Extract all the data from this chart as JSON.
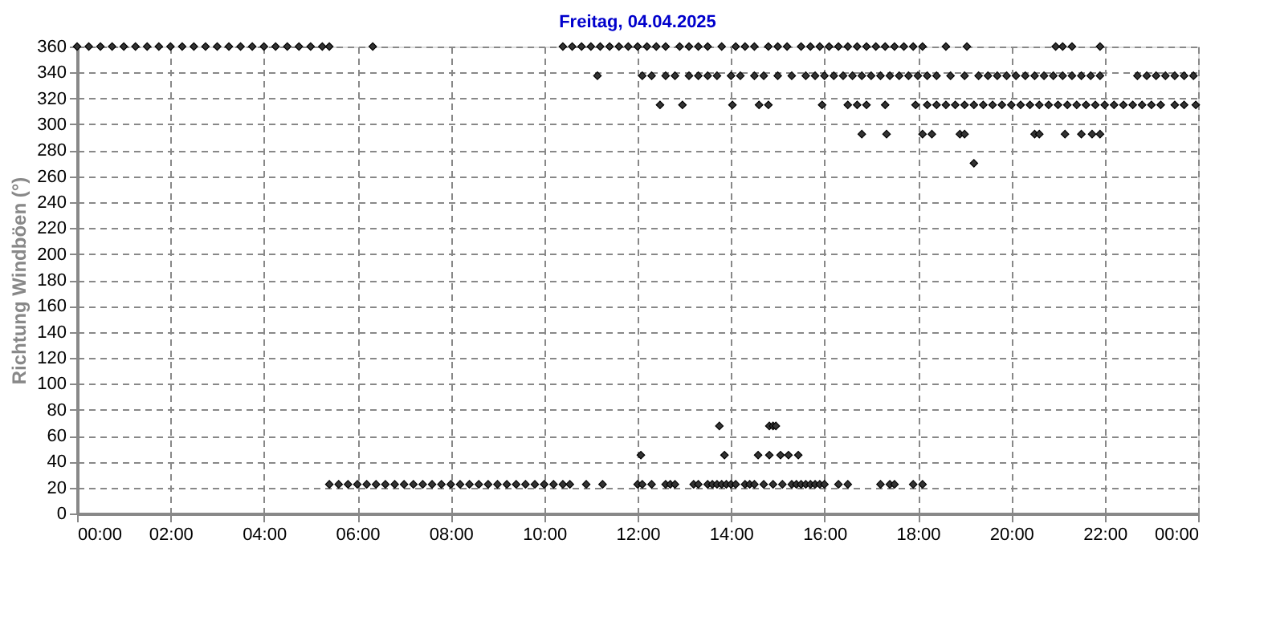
{
  "chart_data": {
    "type": "scatter",
    "title": "Freitag, 04.04.2025",
    "ylabel": "Richtung Windböen  (°)",
    "marker": "diamond",
    "grid": true,
    "legend": false,
    "xlim": [
      0,
      24
    ],
    "xticks": [
      {
        "value": 0,
        "label": "00:00"
      },
      {
        "value": 2,
        "label": "02:00"
      },
      {
        "value": 4,
        "label": "04:00"
      },
      {
        "value": 6,
        "label": "06:00"
      },
      {
        "value": 8,
        "label": "08:00"
      },
      {
        "value": 10,
        "label": "10:00"
      },
      {
        "value": 12,
        "label": "12:00"
      },
      {
        "value": 14,
        "label": "14:00"
      },
      {
        "value": 16,
        "label": "16:00"
      },
      {
        "value": 18,
        "label": "18:00"
      },
      {
        "value": 20,
        "label": "20:00"
      },
      {
        "value": 22,
        "label": "22:00"
      },
      {
        "value": 24,
        "label": "00:00"
      }
    ],
    "ylim": [
      0,
      360
    ],
    "yticks": [
      0,
      20,
      40,
      60,
      80,
      100,
      120,
      140,
      160,
      180,
      200,
      220,
      240,
      260,
      280,
      300,
      320,
      340,
      360
    ],
    "series": [
      {
        "color": "#333333",
        "x": [
          0,
          0.25,
          0.5,
          0.75,
          1,
          1.25,
          1.5,
          1.75,
          2,
          2.25,
          2.5,
          2.75,
          3,
          3.25,
          3.5,
          3.75,
          4,
          4.25,
          4.5,
          4.75,
          5,
          5.25,
          5.4,
          6.33,
          10.4,
          10.6,
          10.8,
          11,
          11.2,
          11.4,
          11.6,
          11.8,
          12,
          12.2,
          12.4,
          12.6,
          12.9,
          13.1,
          13.3,
          13.5,
          13.8,
          14.1,
          14.3,
          14.5,
          14.8,
          15,
          15.2,
          15.5,
          15.7,
          15.9,
          16.1,
          16.3,
          16.5,
          16.7,
          16.9,
          17.1,
          17.3,
          17.5,
          17.7,
          17.9,
          18.1,
          18.6,
          19.05,
          20.95,
          21.1,
          21.3,
          21.9
        ],
        "values": [
          360,
          360,
          360,
          360,
          360,
          360,
          360,
          360,
          360,
          360,
          360,
          360,
          360,
          360,
          360,
          360,
          360,
          360,
          360,
          360,
          360,
          360,
          360,
          360,
          360,
          360,
          360,
          360,
          360,
          360,
          360,
          360,
          360,
          360,
          360,
          360,
          360,
          360,
          360,
          360,
          360,
          360,
          360,
          360,
          360,
          360,
          360,
          360,
          360,
          360,
          360,
          360,
          360,
          360,
          360,
          360,
          360,
          360,
          360,
          360,
          360,
          360,
          360,
          360,
          360,
          360,
          360
        ]
      },
      {
        "color": "#333333",
        "x": [
          11.14,
          12.1,
          12.3,
          12.6,
          12.8,
          13.1,
          13.3,
          13.5,
          13.7,
          14,
          14.2,
          14.5,
          14.7,
          15,
          15.3,
          15.6,
          15.8,
          16,
          16.2,
          16.4,
          16.6,
          16.8,
          17,
          17.2,
          17.4,
          17.6,
          17.8,
          18,
          18.2,
          18.4,
          18.7,
          19,
          19.3,
          19.5,
          19.7,
          19.9,
          20.1,
          20.3,
          20.5,
          20.7,
          20.9,
          21.1,
          21.3,
          21.5,
          21.7,
          21.9,
          22.7,
          22.9,
          23.1,
          23.3,
          23.5,
          23.7,
          23.9
        ],
        "values": [
          337.5,
          337.5,
          337.5,
          337.5,
          337.5,
          337.5,
          337.5,
          337.5,
          337.5,
          337.5,
          337.5,
          337.5,
          337.5,
          337.5,
          337.5,
          337.5,
          337.5,
          337.5,
          337.5,
          337.5,
          337.5,
          337.5,
          337.5,
          337.5,
          337.5,
          337.5,
          337.5,
          337.5,
          337.5,
          337.5,
          337.5,
          337.5,
          337.5,
          337.5,
          337.5,
          337.5,
          337.5,
          337.5,
          337.5,
          337.5,
          337.5,
          337.5,
          337.5,
          337.5,
          337.5,
          337.5,
          337.5,
          337.5,
          337.5,
          337.5,
          337.5,
          337.5,
          337.5
        ]
      },
      {
        "color": "#333333",
        "x": [
          12.48,
          12.96,
          14.03,
          14.6,
          14.8,
          15.95,
          16.5,
          16.7,
          16.9,
          17.3,
          17.95,
          18.2,
          18.4,
          18.6,
          18.8,
          19,
          19.2,
          19.4,
          19.6,
          19.8,
          20,
          20.2,
          20.4,
          20.6,
          20.8,
          21,
          21.2,
          21.4,
          21.6,
          21.8,
          22,
          22.2,
          22.4,
          22.6,
          22.8,
          23,
          23.2,
          23.5,
          23.7,
          23.95
        ],
        "values": [
          315,
          315,
          315,
          315,
          315,
          315,
          315,
          315,
          315,
          315,
          315,
          315,
          315,
          315,
          315,
          315,
          315,
          315,
          315,
          315,
          315,
          315,
          315,
          315,
          315,
          315,
          315,
          315,
          315,
          315,
          315,
          315,
          315,
          315,
          315,
          315,
          315,
          315,
          315,
          315
        ]
      },
      {
        "color": "#333333",
        "x": [
          16.8,
          17.33,
          18.1,
          18.3,
          18.9,
          19,
          20.5,
          20.6,
          21.15,
          21.5,
          21.73,
          21.9
        ],
        "values": [
          292.5,
          292.5,
          292.5,
          292.5,
          292.5,
          292.5,
          292.5,
          292.5,
          292.5,
          292.5,
          292.5,
          292.5
        ]
      },
      {
        "color": "#333333",
        "x": [
          19.2
        ],
        "values": [
          270
        ]
      },
      {
        "color": "#333333",
        "x": [
          13.75,
          14.82,
          14.9,
          14.96
        ],
        "values": [
          67.5,
          67.5,
          67.5,
          67.5
        ]
      },
      {
        "color": "#333333",
        "x": [
          12.07,
          13.86,
          14.58,
          14.82,
          15.06,
          15.23,
          15.44
        ],
        "values": [
          45,
          45,
          45,
          45,
          45,
          45,
          45
        ]
      },
      {
        "color": "#333333",
        "x": [
          5.4,
          5.6,
          5.8,
          6,
          6.2,
          6.4,
          6.6,
          6.8,
          7,
          7.2,
          7.4,
          7.6,
          7.8,
          8,
          8.2,
          8.4,
          8.6,
          8.8,
          9,
          9.2,
          9.4,
          9.6,
          9.8,
          10,
          10.2,
          10.4,
          10.55,
          10.9,
          11.25,
          12,
          12.1,
          12.3,
          12.6,
          12.7,
          12.8,
          13.2,
          13.3,
          13.5,
          13.6,
          13.7,
          13.8,
          13.9,
          14,
          14.1,
          14.3,
          14.4,
          14.5,
          14.7,
          14.9,
          15.1,
          15.3,
          15.4,
          15.5,
          15.6,
          15.7,
          15.8,
          15.9,
          16,
          16.3,
          16.5,
          17.2,
          17.4,
          17.5,
          17.9,
          18.1
        ],
        "values": [
          22.5,
          22.5,
          22.5,
          22.5,
          22.5,
          22.5,
          22.5,
          22.5,
          22.5,
          22.5,
          22.5,
          22.5,
          22.5,
          22.5,
          22.5,
          22.5,
          22.5,
          22.5,
          22.5,
          22.5,
          22.5,
          22.5,
          22.5,
          22.5,
          22.5,
          22.5,
          22.5,
          22.5,
          22.5,
          22.5,
          22.5,
          22.5,
          22.5,
          22.5,
          22.5,
          22.5,
          22.5,
          22.5,
          22.5,
          22.5,
          22.5,
          22.5,
          22.5,
          22.5,
          22.5,
          22.5,
          22.5,
          22.5,
          22.5,
          22.5,
          22.5,
          22.5,
          22.5,
          22.5,
          22.5,
          22.5,
          22.5,
          22.5,
          22.5,
          22.5,
          22.5,
          22.5,
          22.5,
          22.5,
          22.5
        ]
      }
    ]
  }
}
